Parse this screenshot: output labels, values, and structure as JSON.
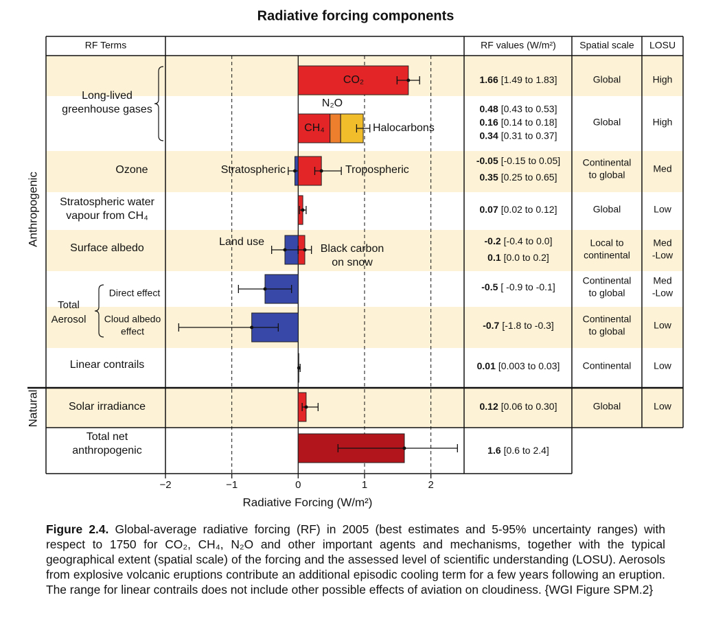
{
  "chart_data": {
    "type": "bar",
    "title": "Radiative forcing components",
    "xlabel": "Radiative Forcing (W/m²)",
    "xlim": [
      -2,
      2.5
    ],
    "xticks": [
      {
        "value": -2,
        "label": "−2"
      },
      {
        "value": -1,
        "label": "−1"
      },
      0,
      1,
      2
    ],
    "grid": true,
    "columns": [
      "RF Terms",
      "RF values (W/m²)",
      "Spatial scale",
      "LOSU"
    ],
    "sections": [
      "Anthropogenic",
      "Natural"
    ],
    "aerosol_label": [
      "Total",
      "Aerosol"
    ],
    "rows": [
      {
        "label": [
          "Long-lived",
          "greenhouse gases"
        ],
        "spatial": [
          "Global"
        ],
        "losu": [
          "High"
        ],
        "components": [
          {
            "name": [
              "CO₂"
            ],
            "value": 1.66,
            "low": 1.49,
            "high": 1.83,
            "range_label": "[1.49 to 1.83]",
            "color": "#e42528"
          }
        ]
      },
      {
        "spatial": [
          "Global"
        ],
        "losu": [
          "High"
        ],
        "stacked": true,
        "stack_error": [
          0.88,
          1.08
        ],
        "components": [
          {
            "name": [
              "CH₄"
            ],
            "value": 0.48,
            "range_label": "[0.43 to 0.53]",
            "color": "#e42528"
          },
          {
            "name": [
              "N₂O"
            ],
            "value": 0.16,
            "range_label": "[0.14 to 0.18]",
            "color": "#ee7f2d"
          },
          {
            "name": [
              "Halocarbons"
            ],
            "value": 0.34,
            "range_label": "[0.31 to 0.37]",
            "color": "#f2bd2a"
          }
        ]
      },
      {
        "label": [
          "Ozone"
        ],
        "spatial": [
          "Continental",
          "to global"
        ],
        "losu": [
          "Med"
        ],
        "components": [
          {
            "name": [
              "Stratospheric"
            ],
            "value": -0.05,
            "low": -0.15,
            "high": 0.05,
            "range_label": "[-0.15 to 0.05]",
            "color": "#3848a8"
          },
          {
            "name": [
              "Tropospheric"
            ],
            "value": 0.35,
            "low": 0.25,
            "high": 0.65,
            "range_label": "[0.25 to 0.65]",
            "color": "#e42528"
          }
        ]
      },
      {
        "label": [
          "Stratospheric water",
          "vapour from CH₄"
        ],
        "spatial": [
          "Global"
        ],
        "losu": [
          "Low"
        ],
        "components": [
          {
            "value": 0.07,
            "low": 0.02,
            "high": 0.12,
            "range_label": "[0.02 to 0.12]",
            "color": "#e42528"
          }
        ]
      },
      {
        "label": [
          "Surface albedo"
        ],
        "spatial": [
          "Local to",
          "continental"
        ],
        "losu": [
          "Med",
          "-Low"
        ],
        "components": [
          {
            "name": [
              "Land use"
            ],
            "value": -0.2,
            "low": -0.4,
            "high": 0.0,
            "range_label": "[-0.4 to 0.0]",
            "color": "#3848a8"
          },
          {
            "name": [
              "Black carbon",
              "on snow"
            ],
            "value": 0.1,
            "low": 0.0,
            "high": 0.2,
            "range_label": "[0.0 to 0.2]",
            "color": "#e42528"
          }
        ]
      },
      {
        "label": [
          "Direct effect"
        ],
        "spatial": [
          "Continental",
          "to global"
        ],
        "losu": [
          "Med",
          "-Low"
        ],
        "components": [
          {
            "value": -0.5,
            "low": -0.9,
            "high": -0.1,
            "range_label": "[ -0.9 to -0.1]",
            "color": "#3848a8"
          }
        ]
      },
      {
        "label": [
          "Cloud albedo",
          "effect"
        ],
        "spatial": [
          "Continental",
          "to global"
        ],
        "losu": [
          "Low"
        ],
        "components": [
          {
            "value": -0.7,
            "low": -1.8,
            "high": -0.3,
            "range_label": "[-1.8 to -0.3]",
            "color": "#3848a8"
          }
        ]
      },
      {
        "label": [
          "Linear contrails"
        ],
        "spatial": [
          "Continental"
        ],
        "losu": [
          "Low"
        ],
        "components": [
          {
            "value": 0.01,
            "low": 0.003,
            "high": 0.03,
            "range_label": "[0.003 to 0.03]",
            "color": "#e42528"
          }
        ]
      },
      {
        "label": [
          "Solar irradiance"
        ],
        "spatial": [
          "Global"
        ],
        "losu": [
          "Low"
        ],
        "components": [
          {
            "value": 0.12,
            "low": 0.06,
            "high": 0.3,
            "range_label": "[0.06 to 0.30]",
            "color": "#e42528"
          }
        ]
      },
      {
        "label": [
          "Total net",
          "anthropogenic"
        ],
        "components": [
          {
            "value": 1.6,
            "low": 0.6,
            "high": 2.4,
            "range_label": "[0.6 to 2.4]",
            "color": "#b2151c"
          }
        ]
      }
    ]
  },
  "caption": {
    "label": "Figure 2.4.",
    "text": "Global-average radiative forcing (RF) in 2005 (best estimates and 5-95% uncertainty ranges) with respect to 1750 for CO₂, CH₄, N₂O and other important agents and mechanisms, together with the typical geographical extent (spatial scale) of the forcing and the assessed level of scientific understanding (LOSU). Aerosols from explosive volcanic eruptions contribute an additional episodic cooling term for a few years following an eruption. The range for linear contrails does not include other possible effects of aviation on cloudiness. {WGI Figure SPM.2}"
  }
}
